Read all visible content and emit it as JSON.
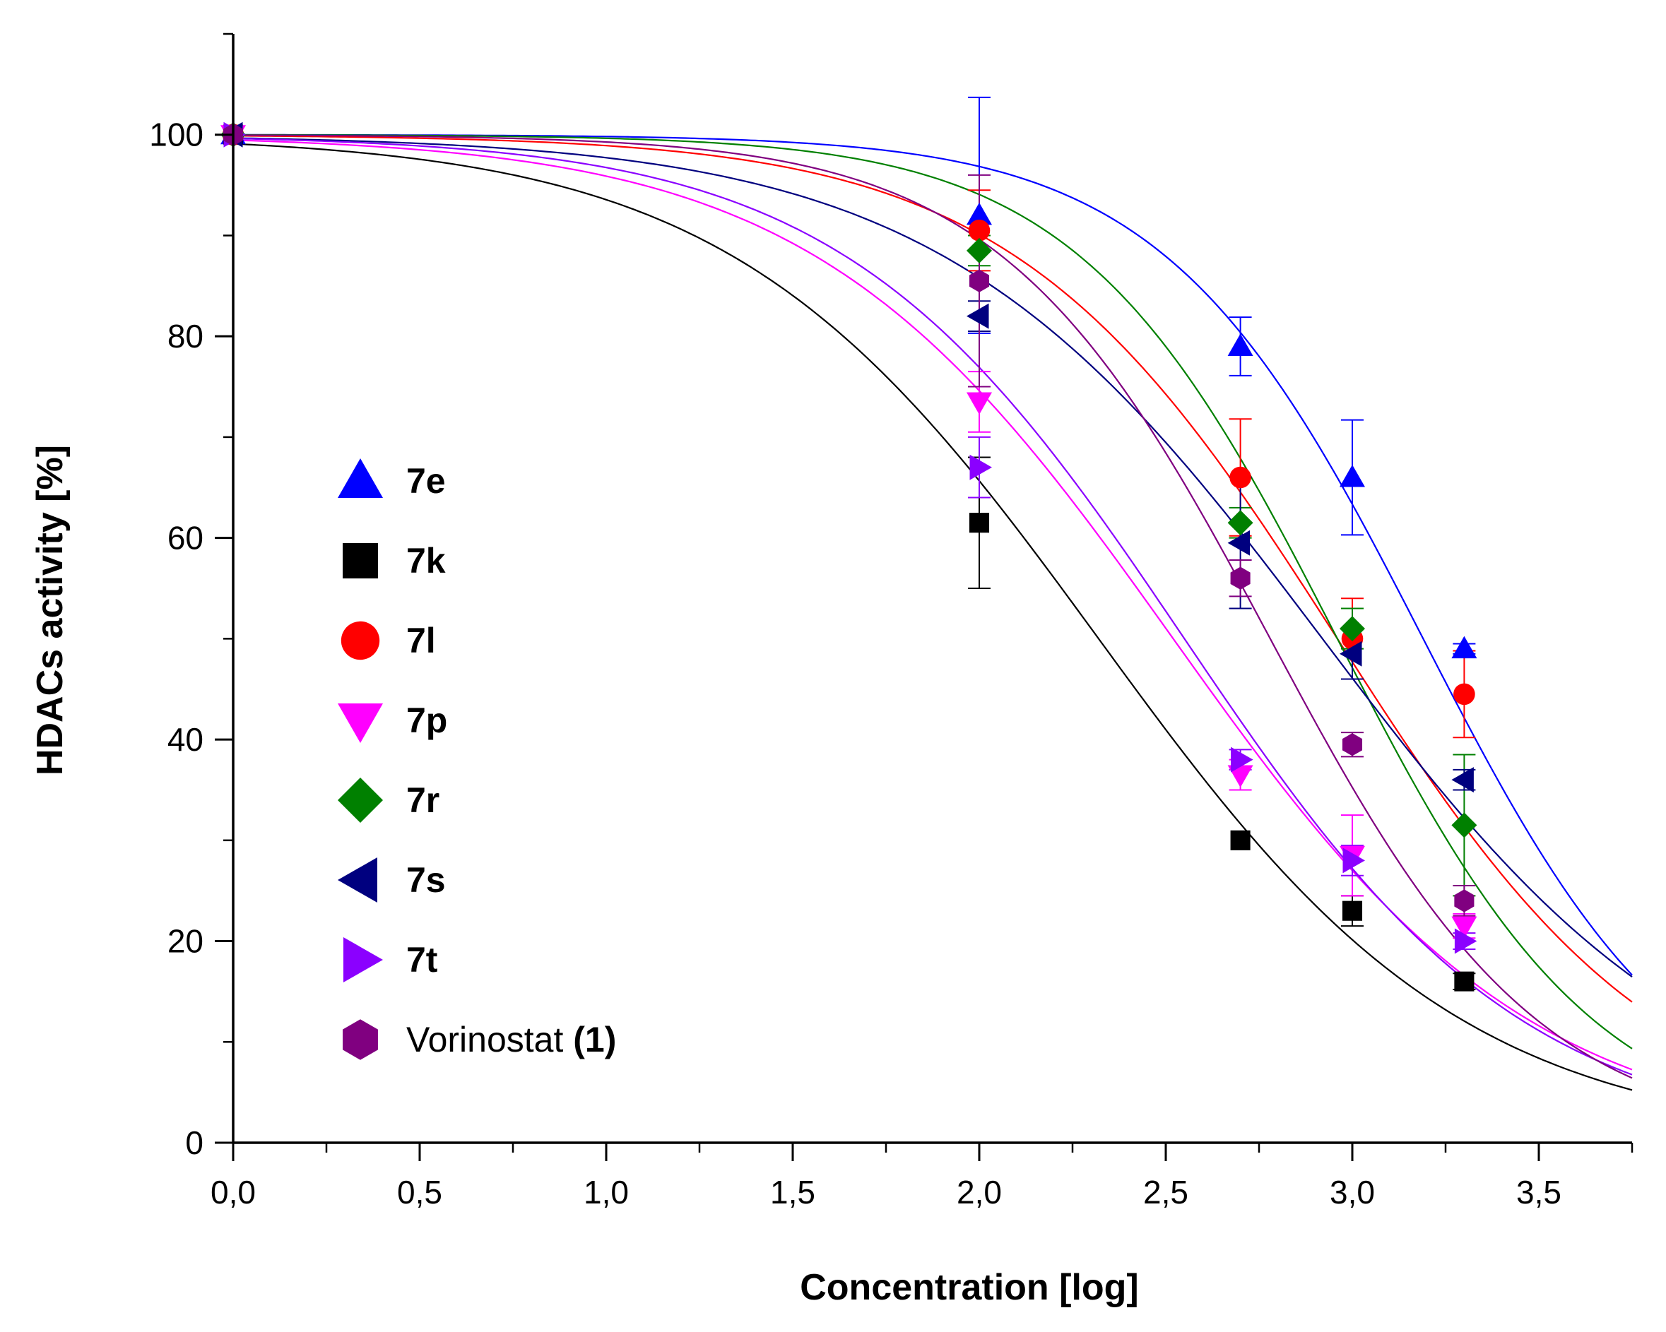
{
  "chart_data": {
    "type": "scatter",
    "xlabel": "Concentration [log]",
    "ylabel": "HDACs activity [%]",
    "xlim": [
      0,
      3.75
    ],
    "ylim": [
      0,
      110
    ],
    "xticks": [
      0,
      0.5,
      1.0,
      1.5,
      2.0,
      2.5,
      3.0,
      3.5
    ],
    "xtick_labels": [
      "0,0",
      "0,5",
      "1,0",
      "1,5",
      "2,0",
      "2,5",
      "3,0",
      "3,5"
    ],
    "yticks": [
      0,
      20,
      40,
      60,
      80,
      100
    ],
    "ytick_labels": [
      "0",
      "20",
      "40",
      "60",
      "80",
      "100"
    ],
    "legend_position": "middle-left",
    "series": [
      {
        "name": "7e",
        "name_bold": "7e",
        "name_plain": "",
        "color": "#0000ff",
        "marker": "triangle-up",
        "x": [
          0,
          2.0,
          2.7,
          3.0,
          3.3
        ],
        "y": [
          100,
          92,
          79,
          66,
          49
        ],
        "err": [
          0,
          11.7,
          2.9,
          5.7,
          0.5
        ],
        "fit": {
          "ic50_log": 3.19,
          "hill": 1.25,
          "top": 100,
          "bottom": 0
        }
      },
      {
        "name": "7k",
        "name_bold": "7k",
        "name_plain": "",
        "color": "#000000",
        "marker": "square",
        "x": [
          0,
          2.0,
          2.7,
          3.0,
          3.3
        ],
        "y": [
          100,
          61.5,
          30,
          23,
          16
        ],
        "err": [
          0,
          6.5,
          0,
          1.5,
          0.8
        ],
        "fit": {
          "ic50_log": 2.32,
          "hill": 0.88,
          "top": 100,
          "bottom": 0
        }
      },
      {
        "name": "7l",
        "name_bold": "7l",
        "name_plain": "",
        "color": "#ff0000",
        "marker": "circle",
        "x": [
          0,
          2.0,
          2.7,
          3.0,
          3.3
        ],
        "y": [
          100,
          90.5,
          66,
          50,
          44.5
        ],
        "err": [
          0,
          4,
          5.8,
          4,
          4.3
        ],
        "fit": {
          "ic50_log": 2.96,
          "hill": 1.0,
          "top": 100,
          "bottom": 0
        }
      },
      {
        "name": "7p",
        "name_bold": "7p",
        "name_plain": "",
        "color": "#ff00ff",
        "marker": "triangle-down",
        "x": [
          0,
          2.0,
          2.7,
          3.0,
          3.3
        ],
        "y": [
          100,
          73.5,
          36.5,
          28.5,
          21.5
        ],
        "err": [
          0,
          3,
          1.5,
          4,
          1.2
        ],
        "fit": {
          "ic50_log": 2.52,
          "hill": 0.9,
          "top": 100,
          "bottom": 0
        }
      },
      {
        "name": "7r",
        "name_bold": "7r",
        "name_plain": "",
        "color": "#008000",
        "marker": "diamond",
        "x": [
          0,
          2.0,
          2.7,
          3.0,
          3.3
        ],
        "y": [
          100,
          88.5,
          61.5,
          51,
          31.5
        ],
        "err": [
          0,
          1.5,
          1.5,
          2,
          7
        ],
        "fit": {
          "ic50_log": 2.96,
          "hill": 1.25,
          "top": 100,
          "bottom": 0
        }
      },
      {
        "name": "7s",
        "name_bold": "7s",
        "name_plain": "",
        "color": "#00007f",
        "marker": "triangle-left",
        "x": [
          0,
          2.0,
          2.7,
          3.0,
          3.3
        ],
        "y": [
          100,
          82,
          59.5,
          48.5,
          36
        ],
        "err": [
          0,
          1.5,
          6.5,
          2.5,
          1
        ],
        "fit": {
          "ic50_log": 2.92,
          "hill": 0.85,
          "top": 100,
          "bottom": 0
        }
      },
      {
        "name": "7t",
        "name_bold": "7t",
        "name_plain": "",
        "color": "#8b00ff",
        "marker": "triangle-right",
        "x": [
          0,
          2.0,
          2.7,
          3.0,
          3.3
        ],
        "y": [
          100,
          67,
          38,
          28,
          20
        ],
        "err": [
          0,
          3,
          1,
          1.5,
          0.8
        ],
        "fit": {
          "ic50_log": 2.55,
          "hill": 0.95,
          "top": 100,
          "bottom": 0
        }
      },
      {
        "name": "Vorinostat (1)",
        "name_bold": "(1)",
        "name_plain": "Vorinostat ",
        "color": "#800080",
        "marker": "hexagon",
        "x": [
          0,
          2.0,
          2.7,
          3.0,
          3.3
        ],
        "y": [
          100,
          85.5,
          56,
          39.5,
          24
        ],
        "err": [
          0,
          10.5,
          1.8,
          1.2,
          1.5
        ],
        "fit": {
          "ic50_log": 2.78,
          "hill": 1.2,
          "top": 100,
          "bottom": 0
        }
      }
    ]
  }
}
